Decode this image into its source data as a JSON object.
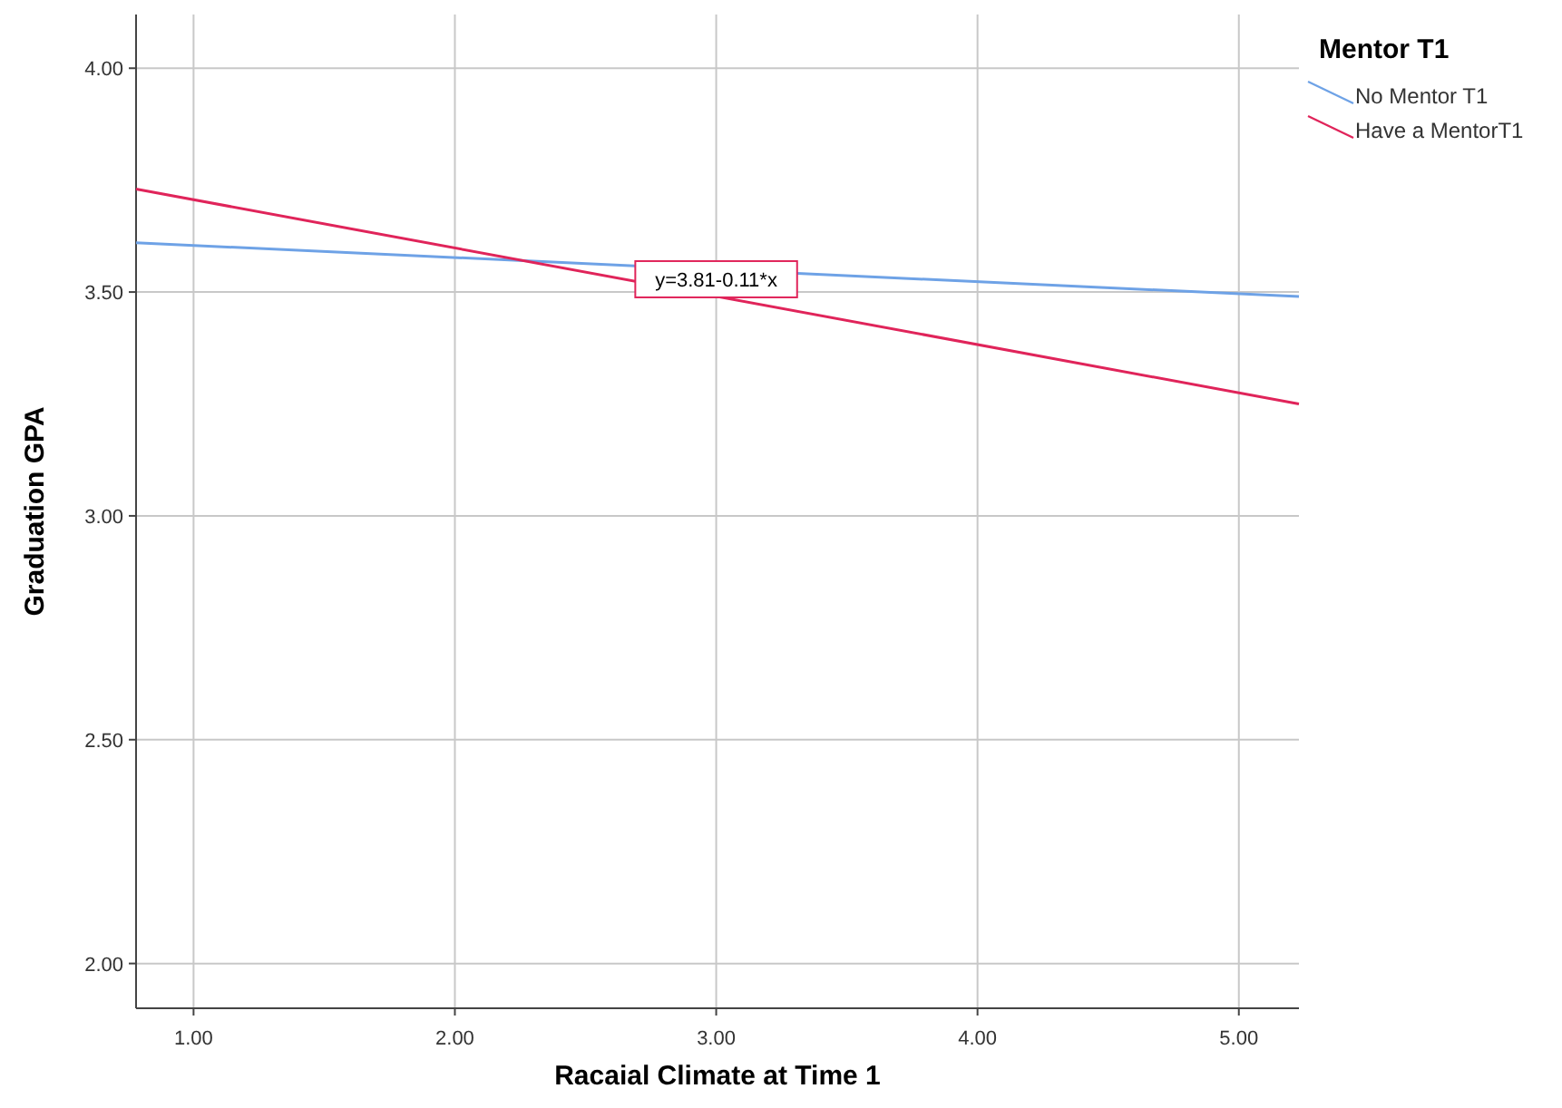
{
  "chart_data": {
    "type": "line",
    "xlabel": "Racaial Climate at Time 1",
    "ylabel": "Graduation GPA",
    "legend_title": "Mentor T1",
    "x": [
      0.78,
      5.23
    ],
    "series": [
      {
        "name": "No Mentor T1",
        "color": "#6ea2e6",
        "values": [
          3.61,
          3.49
        ]
      },
      {
        "name": "Have a MentorT1",
        "color": "#e0245a",
        "values": [
          3.73,
          3.25
        ]
      }
    ],
    "xlim": [
      0.78,
      5.23
    ],
    "xticks": [
      {
        "value": 1,
        "label": "1.00"
      },
      {
        "value": 2,
        "label": "2.00"
      },
      {
        "value": 3,
        "label": "3.00"
      },
      {
        "value": 4,
        "label": "4.00"
      },
      {
        "value": 5,
        "label": "5.00"
      }
    ],
    "ylim": [
      1.9,
      4.12
    ],
    "yticks": [
      {
        "value": 2,
        "label": "2.00"
      },
      {
        "value": 2.5,
        "label": "2.50"
      },
      {
        "value": 3,
        "label": "3.00"
      },
      {
        "value": 3.5,
        "label": "3.50"
      },
      {
        "value": 4,
        "label": "4.00"
      }
    ],
    "grid": true,
    "legend": "top right",
    "marker": "none",
    "line_style": "solid",
    "annotations": [
      {
        "text": "y=3.81-0.11*x",
        "x": 3,
        "y": 3.48
      }
    ]
  }
}
